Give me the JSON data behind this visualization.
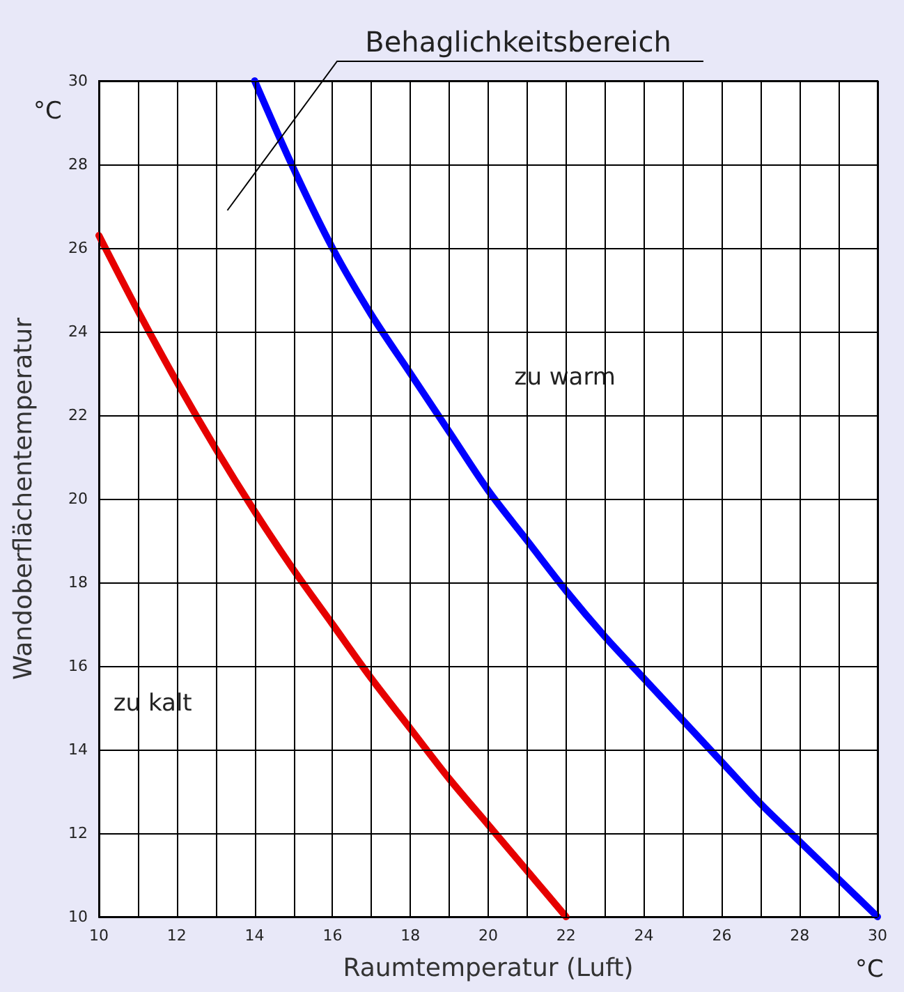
{
  "chart_data": {
    "type": "line",
    "xlabel": "Raumtemperatur (Luft)",
    "ylabel": "Wandoberflächentemperatur",
    "annotations": [
      "Behaglichkeitsbereich",
      "zu warm",
      "zu kalt",
      "°C",
      "°C"
    ],
    "series": [
      {
        "color": "#e60000",
        "x": [
          10,
          11,
          12,
          13,
          14,
          15,
          16,
          17,
          18,
          19,
          20,
          21,
          22
        ],
        "values": [
          26.3,
          24.5,
          22.8,
          21.2,
          19.7,
          18.3,
          17,
          15.7,
          14.5,
          13.3,
          12.2,
          11.1,
          10
        ]
      },
      {
        "color": "#0000ff",
        "x": [
          14,
          15,
          16,
          17,
          18,
          19,
          20,
          21,
          22,
          23,
          24,
          25,
          26,
          27,
          28,
          29,
          30
        ],
        "values": [
          30,
          27.9,
          26,
          24.4,
          23,
          21.6,
          20.2,
          19,
          17.8,
          16.7,
          15.7,
          14.7,
          13.7,
          12.7,
          11.8,
          10.9,
          10
        ]
      }
    ],
    "xlim": [
      10,
      30
    ],
    "xticks": [
      10,
      {
        "value": 11,
        "label": null
      },
      12,
      {
        "value": 13,
        "label": null
      },
      14,
      {
        "value": 15,
        "label": null
      },
      16,
      {
        "value": 17,
        "label": null
      },
      18,
      {
        "value": 19,
        "label": null
      },
      20,
      {
        "value": 21,
        "label": null
      },
      22,
      {
        "value": 23,
        "label": null
      },
      24,
      {
        "value": 25,
        "label": null
      },
      26,
      {
        "value": 27,
        "label": null
      },
      28,
      {
        "value": 29,
        "label": null
      },
      30
    ],
    "ylim": [
      10,
      30
    ],
    "yticks": [
      10,
      12,
      14,
      16,
      18,
      20,
      22,
      24,
      26,
      28,
      30
    ],
    "grid": true,
    "marker": "none",
    "line_style": "solid"
  }
}
